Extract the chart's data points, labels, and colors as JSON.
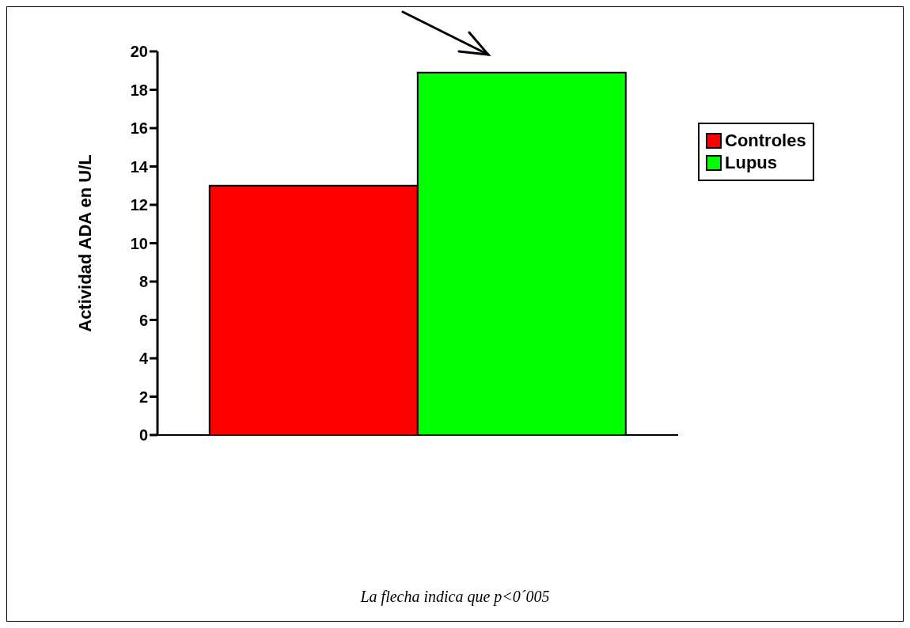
{
  "chart_data": {
    "type": "bar",
    "ylabel": "Actividad ADA en U/L",
    "categories": [
      null
    ],
    "series": [
      {
        "name": "Controles",
        "color": "#ff0000",
        "values": [
          13.0
        ]
      },
      {
        "name": "Lupus",
        "color": "#00ff00",
        "values": [
          18.9
        ]
      }
    ],
    "ylim": [
      0,
      20
    ],
    "yticks": [
      0,
      2,
      4,
      6,
      8,
      10,
      12,
      14,
      16,
      18,
      20
    ],
    "grid": false,
    "legend": "right",
    "annotations": [
      "La flecha indica que p<0´005"
    ]
  }
}
